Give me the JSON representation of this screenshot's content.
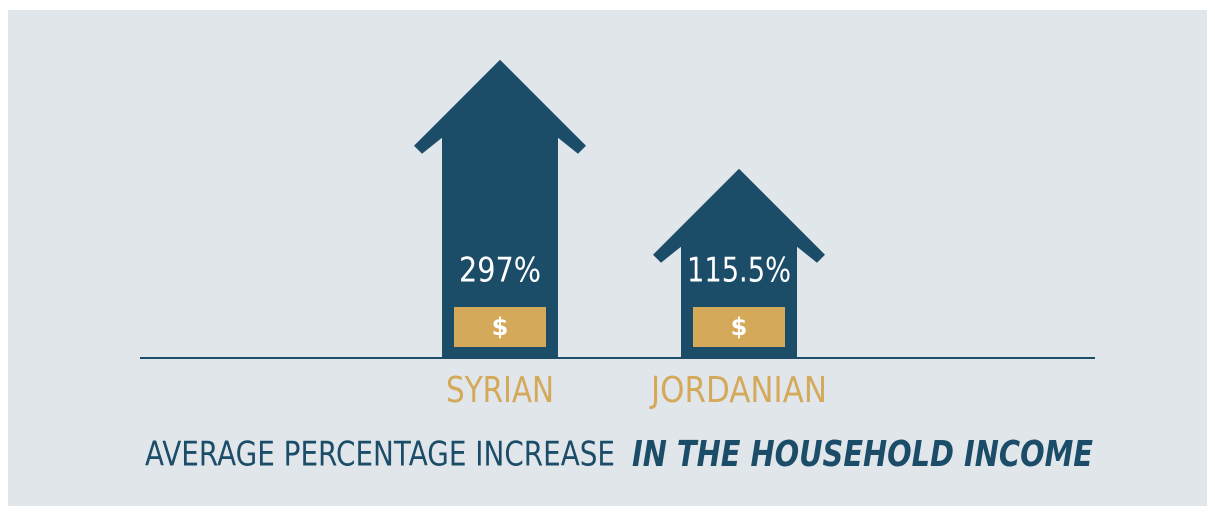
{
  "chart_data": {
    "type": "arrow-bar",
    "title": "AVERAGE PERCENTAGE INCREASE",
    "title_emphasis": "IN THE HOUSEHOLD INCOME",
    "categories": [
      "SYRIAN",
      "JORDANIAN"
    ],
    "values": [
      297,
      115.5
    ],
    "value_labels": [
      "297%",
      "115.5%"
    ],
    "value_icons": [
      "$",
      "$"
    ],
    "color": "#1b4c68",
    "icon_color": "#d4a95a",
    "label_color": "#d4a95a"
  }
}
